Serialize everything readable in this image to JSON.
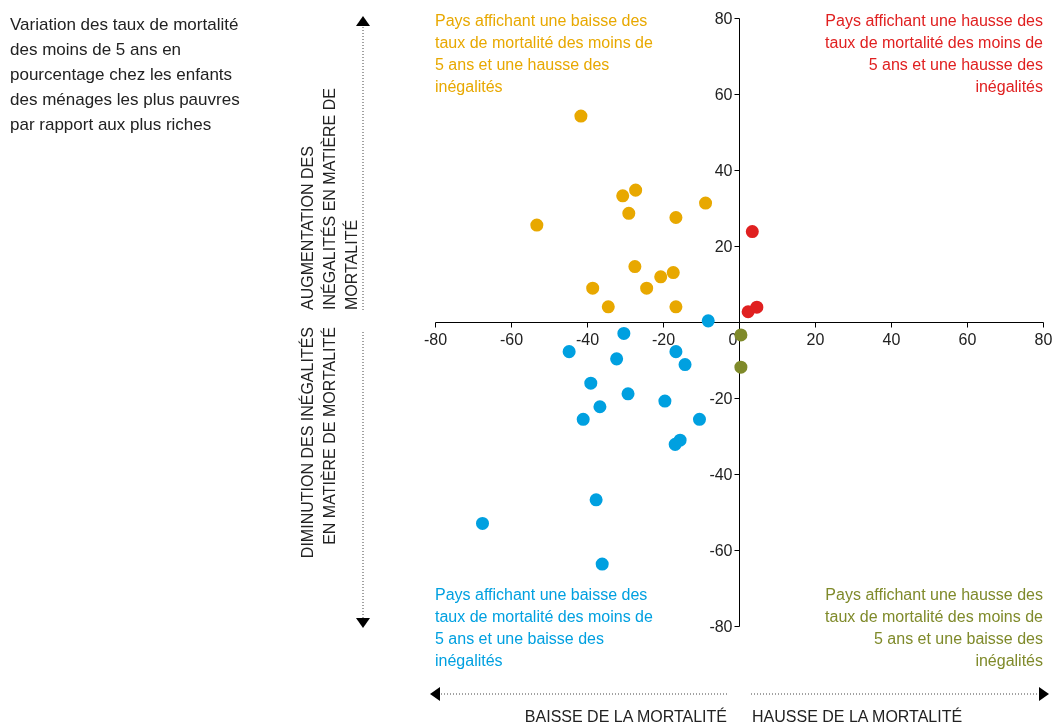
{
  "chart_data": {
    "type": "scatter",
    "title": "Variation des taux de mortalité des moins de 5 ans en pourcentage chez les enfants des ménages les plus pauvres par rapport aux plus riches",
    "series": [
      {
        "color": "#e8a800",
        "x": [
          -41.6,
          -53.2,
          -30.6,
          -27.2,
          -29.0,
          -16.6,
          -8.8,
          -27.4,
          -20.6,
          -17.3,
          -38.5,
          -24.3,
          -34.4,
          -16.6
        ],
        "values": [
          54.2,
          25.5,
          33.2,
          34.7,
          28.6,
          27.5,
          31.3,
          14.6,
          11.9,
          13.0,
          8.9,
          8.9,
          4.0,
          4.0
        ]
      },
      {
        "color": "#e02020",
        "x": [
          3.5,
          2.4,
          4.7
        ],
        "values": [
          23.8,
          2.7,
          3.9
        ]
      },
      {
        "color": "#00a0e0",
        "x": [
          -8.1,
          -30.3,
          -44.7,
          -16.6,
          -32.2,
          -14.2,
          -39.0,
          -29.2,
          -36.6,
          -19.5,
          -41.0,
          -10.4,
          -16.8,
          -15.5,
          -37.6,
          -67.5,
          -36.0
        ],
        "values": [
          0.3,
          -3.0,
          -7.8,
          -7.8,
          -9.7,
          -11.2,
          -16.1,
          -18.9,
          -22.3,
          -20.8,
          -25.6,
          -25.6,
          -32.2,
          -31.1,
          -46.8,
          -53.0,
          -63.7
        ]
      },
      {
        "color": "#7f8a2a",
        "x": [
          0.5,
          0.5
        ],
        "values": [
          -3.4,
          -11.9
        ]
      }
    ],
    "xlim": [
      -80,
      80
    ],
    "xticks": [
      -80,
      -60,
      -40,
      -20,
      0,
      20,
      40,
      60,
      80
    ],
    "ylim": [
      -80,
      80
    ],
    "yticks": [
      -80,
      -60,
      -40,
      -20,
      20,
      40,
      60,
      80
    ],
    "marker": "circle",
    "annotations": [
      "Pays affichant une baisse des taux de mortalité des moins de 5 ans et une hausse des inégalités",
      "Pays affichant une hausse des taux de mortalité des moins de 5 ans et une hausse des inégalités",
      "Pays affichant une baisse des taux de mortalité des moins de 5 ans et une baisse des inégalités",
      "Pays affichant une hausse des taux de mortalité des moins de 5 ans et une baisse des inégalités",
      "AUGMENTATION DES INÉGALITÉS EN MATIÈRE DE MORTALITÉ",
      "DIMINUTION DES INÉGALITÉS EN MATIÈRE DE MORTALITÉ",
      "BAISSE DE LA MORTALITÉ",
      "HAUSSE DE LA MORTALITÉ"
    ]
  }
}
